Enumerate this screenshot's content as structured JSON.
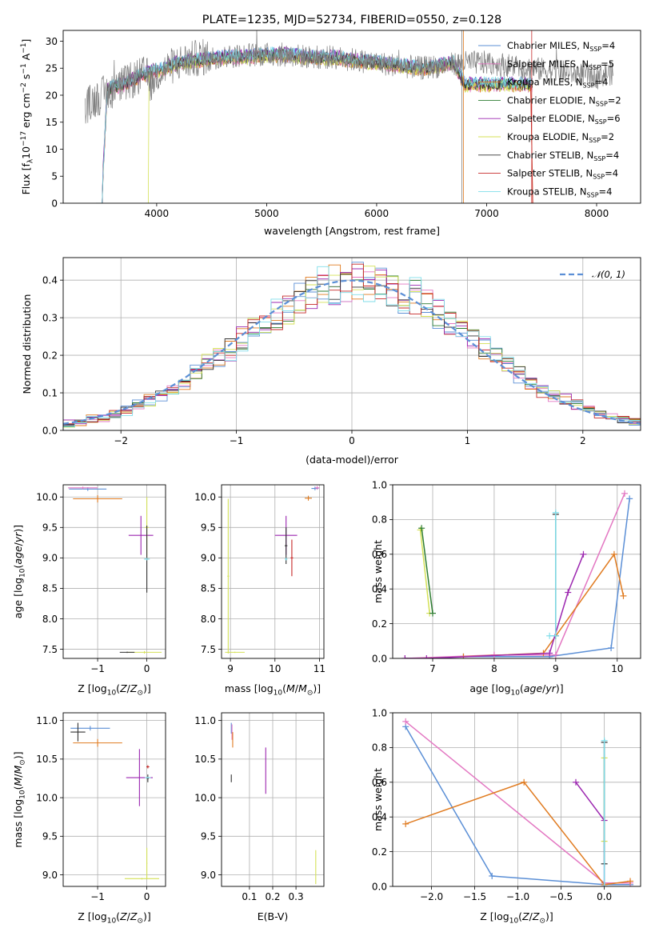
{
  "figure": {
    "title": "PLATE=1235, MJD=52734, FIBERID=0550, z=0.128"
  },
  "models": [
    {
      "key": "cm",
      "color": "#5b8fd6",
      "label": "Chabrier MILES, N",
      "sub": "SSP",
      "eq": "=4"
    },
    {
      "key": "sm",
      "color": "#e377c2",
      "label": "Salpeter MILES, N",
      "sub": "SSP",
      "eq": "=5"
    },
    {
      "key": "km",
      "color": "#e07b20",
      "label": "Kroupa MILES, N",
      "sub": "SSP",
      "eq": "=4"
    },
    {
      "key": "ce",
      "color": "#2e7d32",
      "label": "Chabrier ELODIE, N",
      "sub": "SSP",
      "eq": "=2"
    },
    {
      "key": "se",
      "color": "#9c27b0",
      "label": "Salpeter ELODIE, N",
      "sub": "SSP",
      "eq": "=6"
    },
    {
      "key": "ke",
      "color": "#d4e157",
      "label": "Kroupa ELODIE, N",
      "sub": "SSP",
      "eq": "=2"
    },
    {
      "key": "cs",
      "color": "#333333",
      "label": "Chabrier STELIB, N",
      "sub": "SSP",
      "eq": "=4"
    },
    {
      "key": "ss",
      "color": "#c62828",
      "label": "Salpeter STELIB, N",
      "sub": "SSP",
      "eq": "=4"
    },
    {
      "key": "ks",
      "color": "#80deea",
      "label": "Kroupa STELIB, N",
      "sub": "SSP",
      "eq": "=4"
    }
  ],
  "chart_data": [
    {
      "id": "spectrum",
      "type": "line",
      "xlabel": "wavelength [Angstrom, rest frame]",
      "ylabel": "Flux [f",
      "ylabel_parts": [
        "Flux [f",
        "λ",
        "10",
        "−17",
        " erg cm",
        "−2",
        " s",
        "−1",
        " A",
        "−1",
        "]"
      ],
      "xlim": [
        3150,
        8400
      ],
      "ylim": [
        0,
        32
      ],
      "xticks": [
        4000,
        5000,
        6000,
        7000,
        8000
      ],
      "yticks": [
        0,
        5,
        10,
        15,
        20,
        25,
        30
      ],
      "data_envelope": {
        "x": [
          3350,
          3500,
          3600,
          3700,
          3800,
          3900,
          3950,
          4000,
          4100,
          4200,
          4300,
          4400,
          4600,
          4800,
          5000,
          5200,
          5400,
          5600,
          5800,
          6000,
          6200,
          6400,
          6600,
          6800,
          7000,
          7200,
          7400,
          7600,
          7800,
          8000,
          8100
        ],
        "y": [
          18,
          20,
          21,
          22,
          23,
          24,
          22,
          24,
          25,
          26,
          26.5,
          27,
          27,
          27.5,
          27.5,
          27.5,
          27,
          27,
          26.5,
          26,
          25.5,
          25,
          25.5,
          26,
          26,
          25.5,
          25,
          24.5,
          24,
          23.5,
          24
        ]
      },
      "model_envelope": {
        "x": [
          3500,
          3550,
          3600,
          3700,
          3800,
          3900,
          4000,
          4200,
          4400,
          4600,
          4800,
          5000,
          5200,
          5400,
          5600,
          5800,
          6000,
          6200,
          6400,
          6600,
          6700,
          6800,
          7000,
          7200,
          7400
        ],
        "y": [
          0,
          21,
          21.5,
          22,
          23,
          24,
          24.5,
          26,
          26.5,
          27,
          27,
          27.5,
          27.5,
          27,
          27,
          26.5,
          26,
          25.5,
          25,
          25.5,
          26,
          22,
          22,
          22,
          22
        ]
      }
    },
    {
      "id": "residuals",
      "type": "line",
      "xlabel": "(data-model)/error",
      "ylabel": "Normed distribution",
      "xlim": [
        -2.5,
        2.5
      ],
      "ylim": [
        0,
        0.46
      ],
      "xticks": [
        -2,
        -1,
        0,
        1,
        2
      ],
      "yticks": [
        0.0,
        0.1,
        0.2,
        0.3,
        0.4
      ],
      "legend": "𝒩(0, 1)",
      "bin_width": 0.1,
      "bin_start": -2.5,
      "bins": 50
    },
    {
      "id": "age-vs-Z",
      "type": "scatter",
      "xlabel": "Z [log10(Z/Z⊙)]",
      "ylabel": "age  [log10(age/yr)]",
      "xlim": [
        -1.7,
        0.38
      ],
      "ylim": [
        7.35,
        10.2
      ],
      "xticks": [
        -1,
        0
      ],
      "yticks": [
        7.5,
        8.0,
        8.5,
        9.0,
        9.5,
        10.0
      ],
      "points": [
        {
          "m": "cm",
          "x": -1.2,
          "y": 10.13,
          "xe": 0.38,
          "ye": 0.03
        },
        {
          "m": "sm",
          "x": -1.3,
          "y": 10.15,
          "xe": 0.3,
          "ye": 0.02
        },
        {
          "m": "km",
          "x": -1.0,
          "y": 9.97,
          "xe": 0.5,
          "ye": 0.06
        },
        {
          "m": "se",
          "x": -0.12,
          "y": 9.37,
          "xe": 0.25,
          "ye": 0.32
        },
        {
          "m": "ke",
          "x": 0.0,
          "y": 9.5,
          "xe": 0.04,
          "ye": 0.5
        },
        {
          "m": "cs",
          "x": 0.0,
          "y": 8.98,
          "xe": 0.03,
          "ye": 0.55
        },
        {
          "m": "ks",
          "x": 0.0,
          "y": 8.98,
          "xe": 0.06,
          "ye": 0.02
        },
        {
          "m": "ke",
          "x": -0.05,
          "y": 7.45,
          "xe": 0.35,
          "ye": 0.02
        },
        {
          "m": "cs",
          "x": -0.4,
          "y": 7.45,
          "xe": 0.15,
          "ye": 0.01
        }
      ]
    },
    {
      "id": "age-vs-mass",
      "type": "scatter",
      "xlabel": "mass [log10(M/M⊙)]",
      "ylabel": "",
      "xlim": [
        8.8,
        11.1
      ],
      "ylim": [
        7.35,
        10.2
      ],
      "xticks": [
        9,
        10,
        11
      ],
      "yticks": [
        7.5,
        8.0,
        8.5,
        9.0,
        9.5,
        10.0
      ],
      "points": [
        {
          "m": "cm",
          "x": 10.9,
          "y": 10.14,
          "xe": 0.08,
          "ye": 0.03
        },
        {
          "m": "sm",
          "x": 10.95,
          "y": 10.15,
          "xe": 0.05,
          "ye": 0.03
        },
        {
          "m": "km",
          "x": 10.75,
          "y": 9.98,
          "xe": 0.08,
          "ye": 0.04
        },
        {
          "m": "se",
          "x": 10.25,
          "y": 9.37,
          "xe": 0.25,
          "ye": 0.32
        },
        {
          "m": "cs",
          "x": 10.25,
          "y": 9.2,
          "xe": 0.03,
          "ye": 0.3
        },
        {
          "m": "ss",
          "x": 10.38,
          "y": 9.0,
          "xe": 0.03,
          "ye": 0.3
        },
        {
          "m": "ks",
          "x": 10.25,
          "y": 8.98,
          "xe": 0.03,
          "ye": 0.02
        },
        {
          "m": "ke",
          "x": 8.95,
          "y": 8.7,
          "xe": 0.02,
          "ye": 1.27
        },
        {
          "m": "ke",
          "x": 9.1,
          "y": 7.45,
          "xe": 0.22,
          "ye": 0.01
        }
      ]
    },
    {
      "id": "mass-weight-vs-age",
      "type": "line",
      "xlabel": "age  [log10(age/yr)]",
      "ylabel": "mass weight",
      "xlim": [
        6.35,
        10.38
      ],
      "ylim": [
        0,
        1.0
      ],
      "xticks": [
        7,
        8,
        9,
        10
      ],
      "yticks": [
        0.0,
        0.2,
        0.4,
        0.6,
        0.8,
        1.0
      ],
      "series": [
        {
          "m": "cm",
          "x": [
            7.5,
            8.9,
            9.9,
            10.2
          ],
          "y": [
            0.01,
            0.01,
            0.06,
            0.92
          ]
        },
        {
          "m": "sm",
          "x": [
            6.55,
            8.0,
            9.0,
            10.12
          ],
          "y": [
            0.0,
            0.02,
            0.02,
            0.95
          ]
        },
        {
          "m": "km",
          "x": [
            7.5,
            8.8,
            9.95,
            10.1
          ],
          "y": [
            0.01,
            0.03,
            0.6,
            0.36
          ]
        },
        {
          "m": "se",
          "x": [
            6.55,
            6.9,
            8.9,
            9.2,
            9.45
          ],
          "y": [
            0.0,
            0.0,
            0.03,
            0.38,
            0.6
          ]
        },
        {
          "m": "ke",
          "x": [
            6.8,
            6.95
          ],
          "y": [
            0.74,
            0.26
          ]
        },
        {
          "m": "ce",
          "x": [
            6.82,
            7.0
          ],
          "y": [
            0.75,
            0.26
          ]
        },
        {
          "m": "cs",
          "x": [
            9.0,
            9.0
          ],
          "y": [
            0.83,
            0.13
          ]
        },
        {
          "m": "ks",
          "x": [
            8.9,
            9.0,
            9.0
          ],
          "y": [
            0.13,
            0.13,
            0.84
          ]
        }
      ]
    },
    {
      "id": "mass-vs-Z",
      "type": "scatter",
      "xlabel": "Z [log10(Z/Z⊙)]",
      "ylabel": "mass [log10(M/M⊙)]",
      "xlim": [
        -1.7,
        0.38
      ],
      "ylim": [
        8.85,
        11.1
      ],
      "xticks": [
        -1,
        0
      ],
      "yticks": [
        9.0,
        9.5,
        10.0,
        10.5,
        11.0
      ],
      "points": [
        {
          "m": "cm",
          "x": -1.15,
          "y": 10.9,
          "xe": 0.4,
          "ye": 0.03
        },
        {
          "m": "cs",
          "x": -1.4,
          "y": 10.85,
          "xe": 0.15,
          "ye": 0.12
        },
        {
          "m": "km",
          "x": -1.0,
          "y": 10.71,
          "xe": 0.5,
          "ye": 0.05
        },
        {
          "m": "se",
          "x": -0.15,
          "y": 10.26,
          "xe": 0.27,
          "ye": 0.37
        },
        {
          "m": "ss",
          "x": 0.02,
          "y": 10.4,
          "xe": 0.03,
          "ye": 0.02
        },
        {
          "m": "cs",
          "x": 0.02,
          "y": 10.25,
          "xe": 0.02,
          "ye": 0.05
        },
        {
          "m": "ks",
          "x": 0.02,
          "y": 10.26,
          "xe": 0.06,
          "ye": 0.01
        },
        {
          "m": "ke",
          "x": -0.1,
          "y": 8.95,
          "xe": 0.35,
          "ye": 0.01
        },
        {
          "m": "ke",
          "x": 0.0,
          "y": 9.15,
          "xe": 0.01,
          "ye": 0.2
        }
      ]
    },
    {
      "id": "mass-vs-EBV",
      "type": "scatter",
      "xlabel": "E(B-V)",
      "ylabel": "",
      "xlim": [
        -0.02,
        0.42
      ],
      "ylim": [
        8.85,
        11.1
      ],
      "xticks": [
        0.1,
        0.2,
        0.3
      ],
      "yticks": [
        9.0,
        9.5,
        10.0,
        10.5,
        11.0
      ],
      "points": [
        {
          "m": "cm",
          "x": 0.022,
          "y": 10.9,
          "xe": 0.0,
          "ye": 0.07
        },
        {
          "m": "sm",
          "x": 0.025,
          "y": 10.85,
          "xe": 0.0,
          "ye": 0.1
        },
        {
          "m": "km",
          "x": 0.028,
          "y": 10.75,
          "xe": 0.0,
          "ye": 0.1
        },
        {
          "m": "cs",
          "x": 0.022,
          "y": 10.25,
          "xe": 0.0,
          "ye": 0.05
        },
        {
          "m": "se",
          "x": 0.17,
          "y": 10.35,
          "xe": 0.0,
          "ye": 0.3
        },
        {
          "m": "ke",
          "x": 0.385,
          "y": 9.1,
          "xe": 0.0,
          "ye": 0.22
        }
      ]
    },
    {
      "id": "mass-weight-vs-Z",
      "type": "line",
      "xlabel": "Z [log10(Z/Z⊙)]",
      "ylabel": "mass weight",
      "xlim": [
        -2.45,
        0.42
      ],
      "ylim": [
        0,
        1.0
      ],
      "xticks": [
        -2.0,
        -1.5,
        -1.0,
        -0.5,
        0.0
      ],
      "yticks": [
        0.0,
        0.2,
        0.4,
        0.6,
        0.8,
        1.0
      ],
      "series": [
        {
          "m": "cm",
          "x": [
            -2.3,
            -1.3,
            0.0,
            0.3
          ],
          "y": [
            0.92,
            0.06,
            0.01,
            0.01
          ]
        },
        {
          "m": "sm",
          "x": [
            -2.3,
            0.0,
            0.3
          ],
          "y": [
            0.95,
            0.02,
            0.02
          ]
        },
        {
          "m": "km",
          "x": [
            -2.3,
            -0.93,
            0.0,
            0.3
          ],
          "y": [
            0.36,
            0.6,
            0.01,
            0.03
          ]
        },
        {
          "m": "se",
          "x": [
            -0.33,
            0.0,
            0.0
          ],
          "y": [
            0.6,
            0.38,
            0.0
          ]
        },
        {
          "m": "ke",
          "x": [
            0.0,
            0.0
          ],
          "y": [
            0.74,
            0.26
          ]
        },
        {
          "m": "cs",
          "x": [
            0.0,
            0.0
          ],
          "y": [
            0.83,
            0.13
          ]
        },
        {
          "m": "ks",
          "x": [
            0.0,
            0.0
          ],
          "y": [
            0.84,
            0.0
          ]
        }
      ]
    }
  ]
}
